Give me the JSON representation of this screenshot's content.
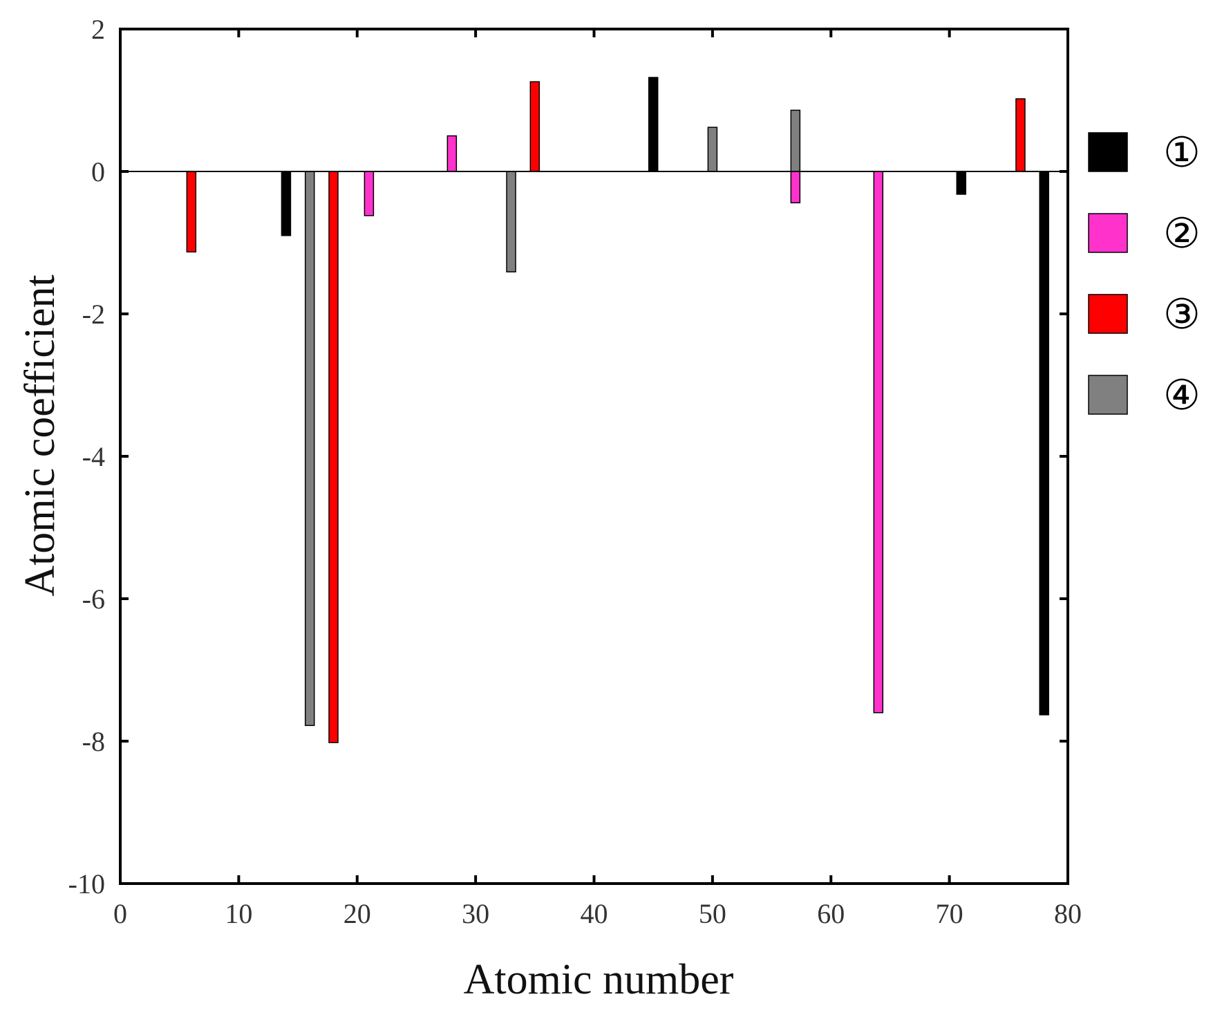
{
  "chart_data": {
    "type": "bar",
    "xlabel": "Atomic number",
    "ylabel": "Atomic coefficient",
    "xlim": [
      0,
      80
    ],
    "ylim": [
      -10,
      2
    ],
    "xticks": [
      "0",
      "10",
      "20",
      "30",
      "40",
      "50",
      "60",
      "70",
      "80"
    ],
    "yticks": [
      "2",
      "0",
      "-2",
      "-4",
      "-6",
      "-8",
      "-10"
    ],
    "xtick_values": [
      0,
      10,
      20,
      30,
      40,
      50,
      60,
      70,
      80
    ],
    "ytick_values": [
      2,
      0,
      -2,
      -4,
      -6,
      -8,
      -10
    ],
    "grid": false,
    "legend_position": "right",
    "series": [
      {
        "name": "①",
        "color": "#000000",
        "points": [
          {
            "x": 14,
            "y": -0.9
          },
          {
            "x": 45,
            "y": 1.32
          },
          {
            "x": 71,
            "y": -0.32
          },
          {
            "x": 78,
            "y": -7.63
          }
        ]
      },
      {
        "name": "②",
        "color": "#ff33cc",
        "points": [
          {
            "x": 21,
            "y": -0.62
          },
          {
            "x": 28,
            "y": 0.5
          },
          {
            "x": 57,
            "y": -0.44
          },
          {
            "x": 64,
            "y": -7.6
          }
        ]
      },
      {
        "name": "③",
        "color": "#ff0000",
        "points": [
          {
            "x": 6,
            "y": -1.13
          },
          {
            "x": 18,
            "y": -8.02
          },
          {
            "x": 35,
            "y": 1.26
          },
          {
            "x": 76,
            "y": 1.02
          }
        ]
      },
      {
        "name": "④",
        "color": "#808080",
        "points": [
          {
            "x": 16,
            "y": -7.78
          },
          {
            "x": 33,
            "y": -1.41
          },
          {
            "x": 50,
            "y": 0.62
          },
          {
            "x": 57,
            "y": 0.86
          }
        ]
      }
    ]
  }
}
